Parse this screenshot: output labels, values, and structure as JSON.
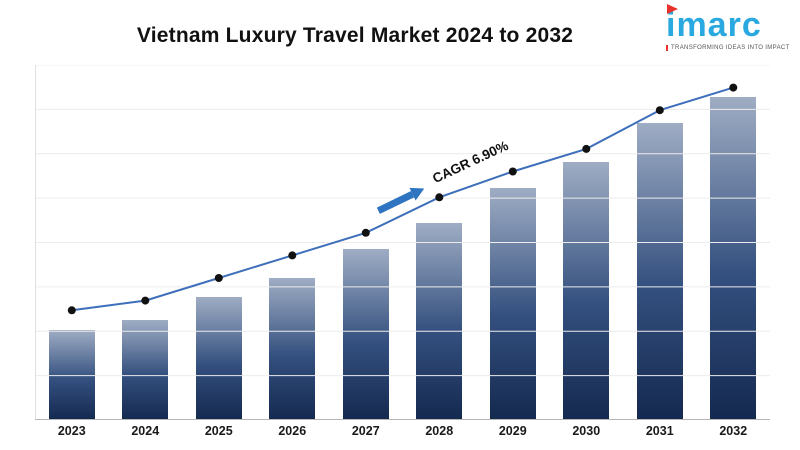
{
  "header": {
    "title": "Vietnam Luxury Travel Market 2024 to 2032"
  },
  "logo": {
    "name": "imarc",
    "tagline": "TRANSFORMING IDEAS INTO IMPACT"
  },
  "colors": {
    "brand": "#2aa9e1",
    "accent": "#e8312a",
    "bar_top": "#9fadc4",
    "bar_mid": "#34507f",
    "bar_bottom": "#14294f",
    "line": "#3e6fba",
    "dot": "#111111",
    "arrow": "#2f74c0",
    "grid": "#ececec",
    "axis": "#b5b5b5"
  },
  "chart_data": {
    "type": "bar",
    "title": "Vietnam Luxury Travel Market 2024 to 2032",
    "xlabel": "",
    "ylabel": "",
    "categories": [
      "2023",
      "2024",
      "2025",
      "2026",
      "2027",
      "2028",
      "2029",
      "2030",
      "2031",
      "2032"
    ],
    "series": [
      {
        "name": "market-size-bars",
        "type": "bar",
        "values": [
          28,
          31,
          38,
          44,
          53,
          61,
          72,
          80,
          92,
          100
        ]
      },
      {
        "name": "trend-line",
        "type": "line",
        "values": [
          34,
          37,
          44,
          51,
          58,
          69,
          77,
          84,
          96,
          103
        ]
      }
    ],
    "values": [
      28,
      31,
      38,
      44,
      53,
      61,
      72,
      80,
      92,
      100
    ],
    "line_values": [
      34,
      37,
      44,
      51,
      58,
      69,
      77,
      84,
      96,
      103
    ],
    "ylim": [
      0,
      110
    ],
    "grid": "horizontal",
    "legend": "none",
    "annotation": {
      "label": "CAGR 6.90%",
      "between": [
        "2027",
        "2028"
      ]
    },
    "note": "no y-axis tick labels shown; values are relative units estimated from bar heights"
  }
}
